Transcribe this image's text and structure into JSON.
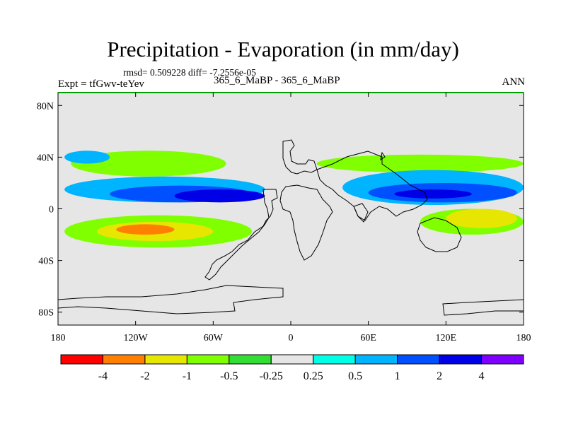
{
  "header": {
    "title": "Precipitation - Evaporation (in mm/day)",
    "stats": "rmsd= 0.509228 diff= -7.2556e-05",
    "experiment": "Expt = tfGwv-teYev",
    "runs": "365_6_MaBP - 365_6_MaBP",
    "season": "ANN"
  },
  "chart_data": {
    "type": "heatmap",
    "title": "Precipitation - Evaporation (in mm/day)",
    "subtitle": "365_6_MaBP - 365_6_MaBP",
    "xlabel": "",
    "ylabel": "",
    "xlim": [
      -180,
      180
    ],
    "ylim": [
      -90,
      90
    ],
    "x_ticks": [
      {
        "value": -180,
        "label": "180"
      },
      {
        "value": -120,
        "label": "120W"
      },
      {
        "value": -60,
        "label": "60W"
      },
      {
        "value": 0,
        "label": "0"
      },
      {
        "value": 60,
        "label": "60E"
      },
      {
        "value": 120,
        "label": "120E"
      },
      {
        "value": 180,
        "label": "180"
      }
    ],
    "y_ticks": [
      {
        "value": 80,
        "label": "80N"
      },
      {
        "value": 40,
        "label": "40N"
      },
      {
        "value": 0,
        "label": "0"
      },
      {
        "value": -40,
        "label": "40S"
      },
      {
        "value": -80,
        "label": "80S"
      }
    ],
    "colorbar": {
      "levels": [
        "-4",
        "-2",
        "-1",
        "-0.5",
        "-0.25",
        "0.25",
        "0.5",
        "1",
        "2",
        "4"
      ],
      "colors": [
        "#ff0000",
        "#ff8000",
        "#e6e600",
        "#80ff00",
        "#33dd33",
        "#e6e6e6",
        "#00ffe6",
        "#00b4ff",
        "#0050ff",
        "#0000e6",
        "#8000ff"
      ]
    },
    "background_value_class": "-0.25 to 0.25",
    "regions": [
      {
        "level": "-0.5",
        "lon": [
          -170,
          -50
        ],
        "lat": [
          25,
          45
        ]
      },
      {
        "level": "-0.5",
        "lon": [
          20,
          180
        ],
        "lat": [
          28,
          42
        ]
      },
      {
        "level": "-0.5",
        "lon": [
          -175,
          -30
        ],
        "lat": [
          -30,
          -5
        ]
      },
      {
        "level": "-1",
        "lon": [
          -150,
          -60
        ],
        "lat": [
          -25,
          -10
        ]
      },
      {
        "level": "-2",
        "lon": [
          -135,
          -90
        ],
        "lat": [
          -20,
          -12
        ]
      },
      {
        "level": "-0.5",
        "lon": [
          100,
          180
        ],
        "lat": [
          -20,
          0
        ]
      },
      {
        "level": "-1",
        "lon": [
          120,
          175
        ],
        "lat": [
          -15,
          0
        ]
      },
      {
        "level": "0.5",
        "lon": [
          -175,
          -20
        ],
        "lat": [
          5,
          25
        ]
      },
      {
        "level": "1",
        "lon": [
          -140,
          -30
        ],
        "lat": [
          5,
          18
        ]
      },
      {
        "level": "2",
        "lon": [
          -90,
          -20
        ],
        "lat": [
          5,
          15
        ]
      },
      {
        "level": "0.5",
        "lon": [
          40,
          180
        ],
        "lat": [
          3,
          30
        ]
      },
      {
        "level": "1",
        "lon": [
          60,
          175
        ],
        "lat": [
          5,
          20
        ]
      },
      {
        "level": "2",
        "lon": [
          80,
          140
        ],
        "lat": [
          8,
          15
        ]
      },
      {
        "level": "0.5",
        "lon": [
          -175,
          -140
        ],
        "lat": [
          35,
          45
        ]
      }
    ]
  }
}
